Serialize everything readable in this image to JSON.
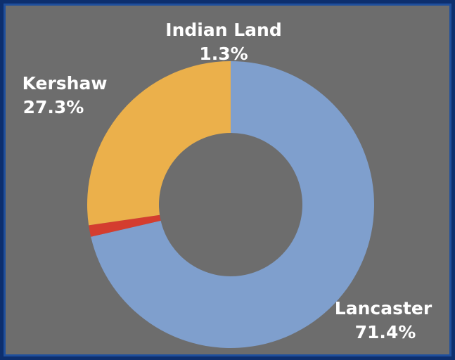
{
  "chart_data": {
    "type": "pie",
    "style": "donut",
    "categories": [
      "Lancaster",
      "Indian Land",
      "Kershaw"
    ],
    "values": [
      71.4,
      1.3,
      27.3
    ],
    "labels": [
      "71.4%",
      "1.3%",
      "27.3%"
    ],
    "colors": [
      "#7f9fcd",
      "#d43d2f",
      "#ebb04b"
    ],
    "background": "#6d6d6d",
    "border_color": "#1f4f9c",
    "legend": "none"
  }
}
